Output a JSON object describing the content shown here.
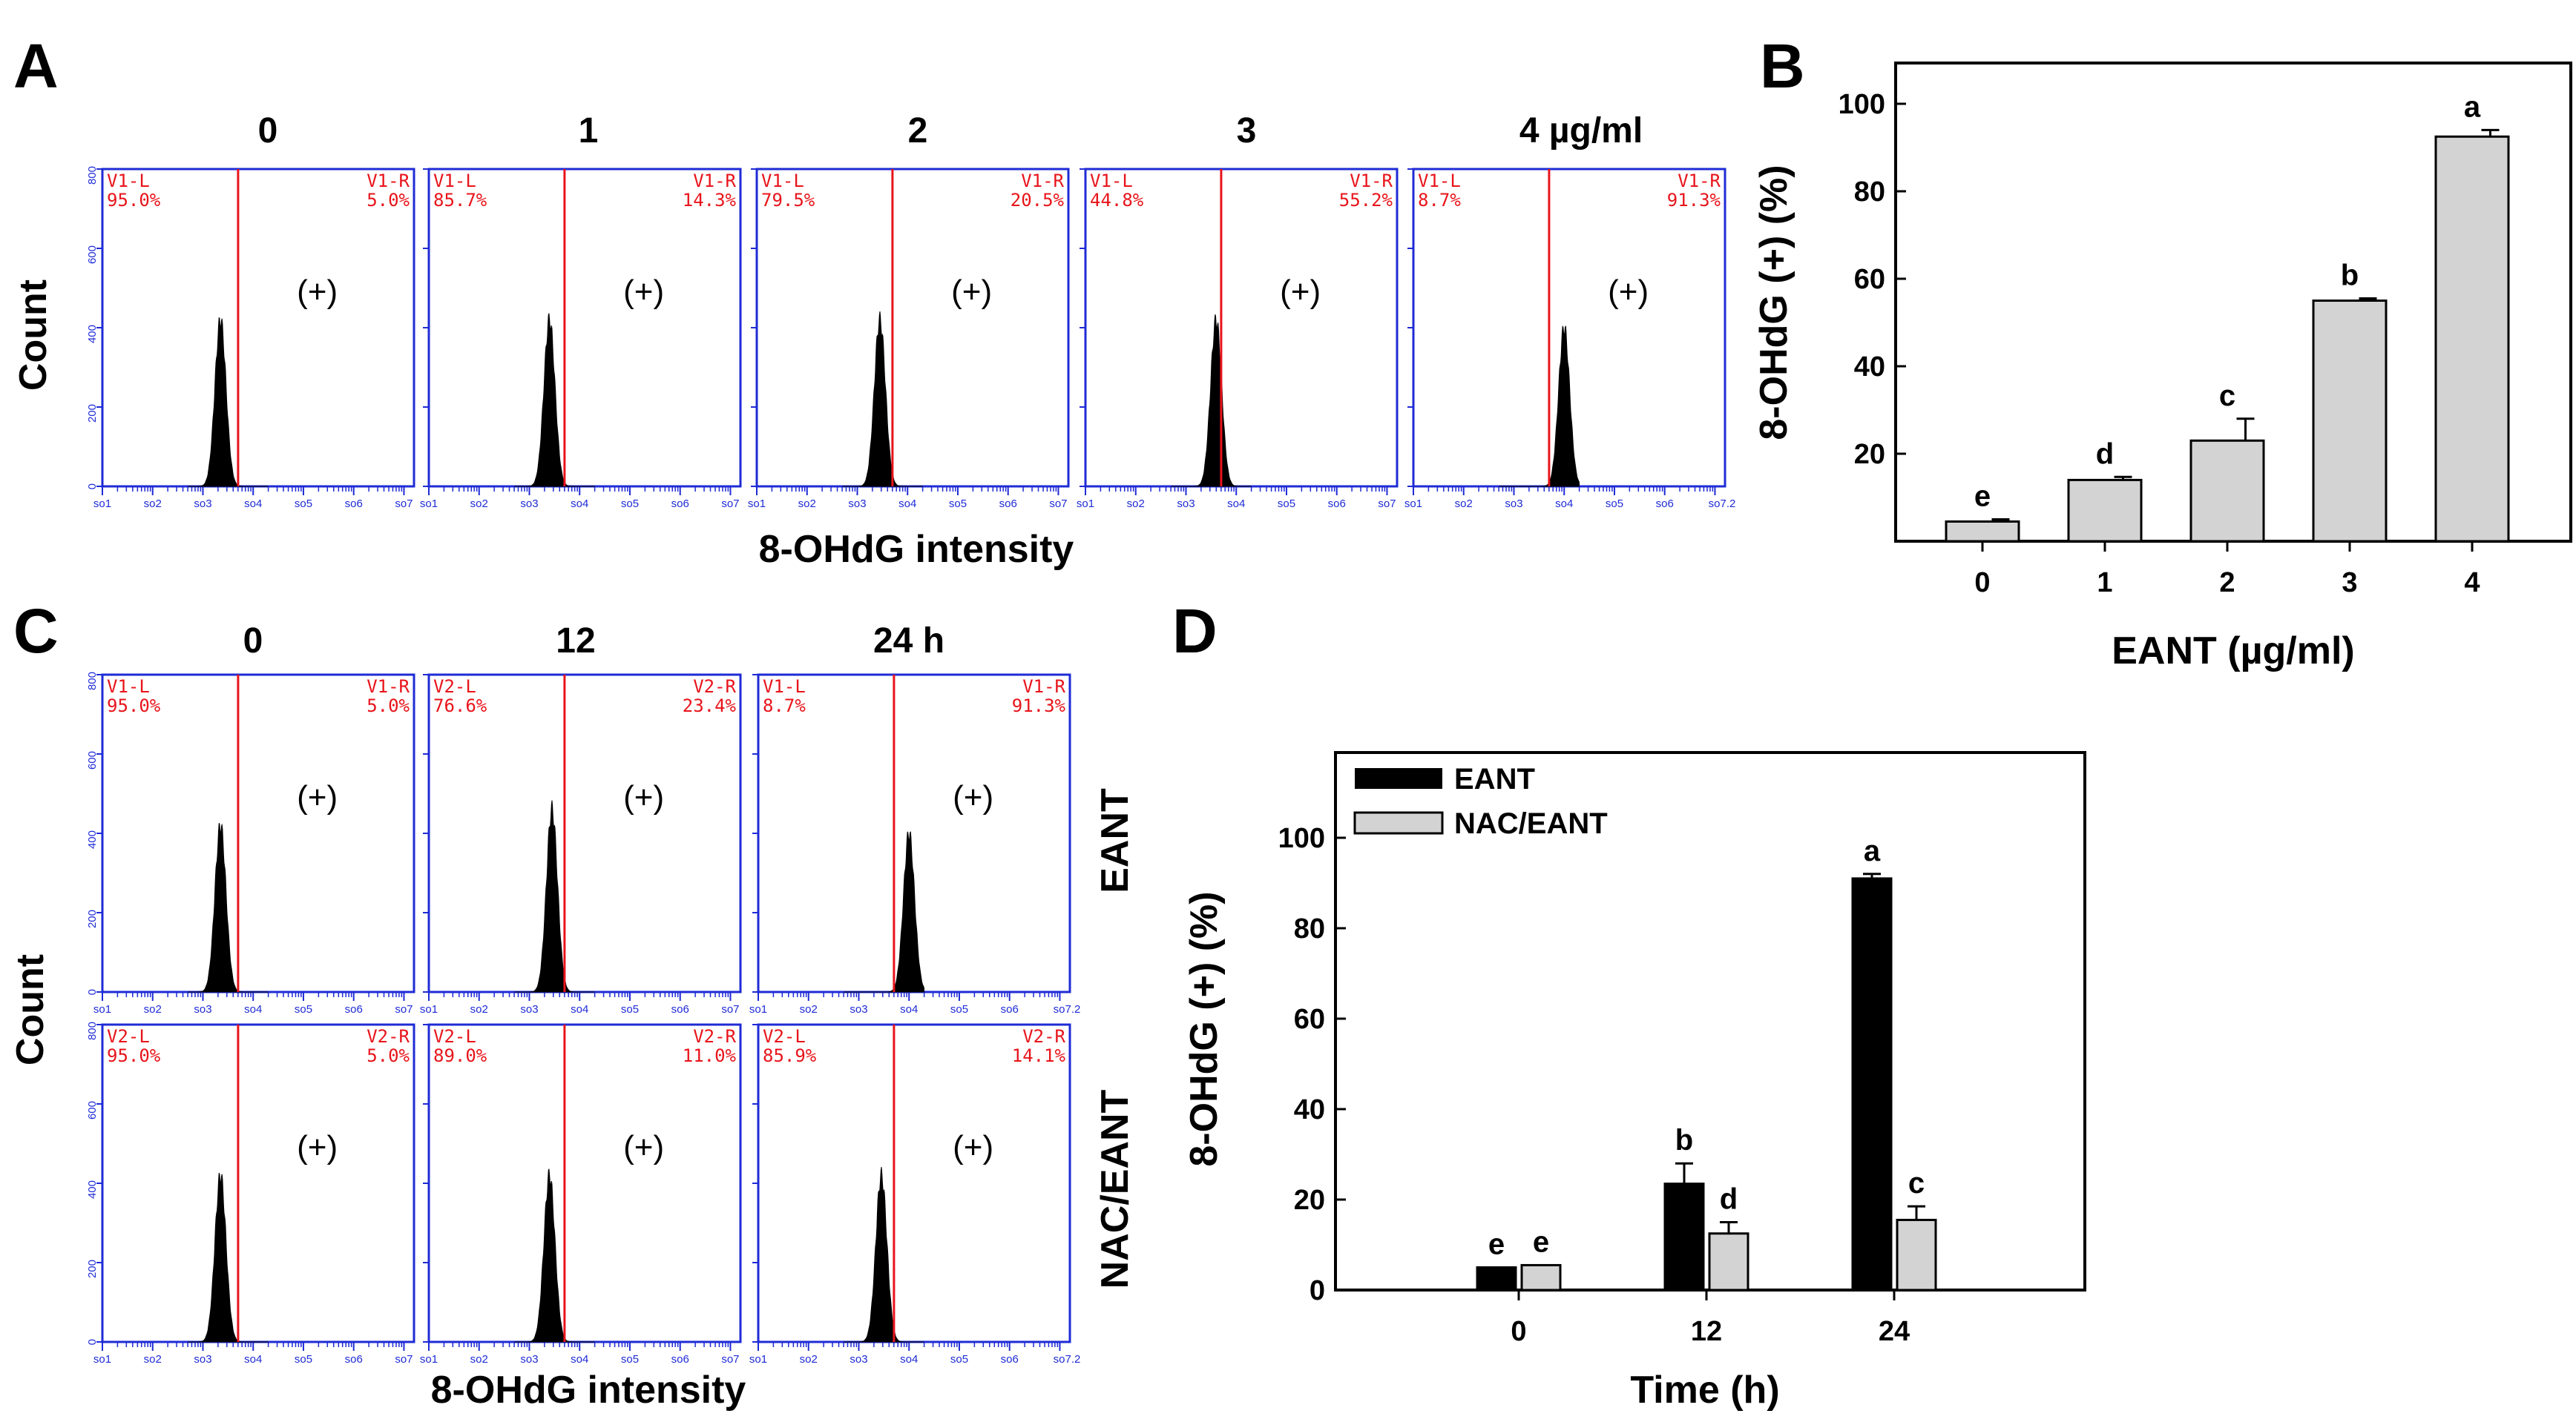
{
  "panels": {
    "A": "A",
    "B": "B",
    "C": "C",
    "D": "D"
  },
  "shared_labels": {
    "count": "Count",
    "intensity_a": "8-OHdG intensity",
    "intensity_c": "8-OHdG intensity",
    "row_eant": "EANT",
    "row_nac": "NAC/EANT",
    "positive": "(+)"
  },
  "flow_axis": {
    "y_ticks": [
      "0",
      "200",
      "400",
      "600",
      "800"
    ],
    "x_ticks": [
      "10^1",
      "10^2",
      "10^3",
      "10^4",
      "10^5",
      "10^6",
      "10^7"
    ],
    "last_x_tick_label": "10^7.2"
  },
  "colors": {
    "frame": "#1f2bd6",
    "gate": "#e8141b",
    "histogram": "#000000",
    "bar_eant": "#000000",
    "bar_nac": "#d3d3d3",
    "bar_b": "#d3d3d3"
  },
  "panel_a": {
    "headers": [
      "0",
      "1",
      "2",
      "3",
      "4 µg/ml"
    ],
    "plots": [
      {
        "gate_l": "V1-L",
        "pct_l": "95.0%",
        "gate_r": "V1-R",
        "pct_r": "5.0%",
        "peak_log": 3.35,
        "peak_count": 420
      },
      {
        "gate_l": "V1-L",
        "pct_l": "85.7%",
        "gate_r": "V1-R",
        "pct_r": "14.3%",
        "peak_log": 3.4,
        "peak_count": 420
      },
      {
        "gate_l": "V1-L",
        "pct_l": "79.5%",
        "gate_r": "V1-R",
        "pct_r": "20.5%",
        "peak_log": 3.45,
        "peak_count": 420
      },
      {
        "gate_l": "V1-L",
        "pct_l": "44.8%",
        "gate_r": "V1-R",
        "pct_r": "55.2%",
        "peak_log": 3.6,
        "peak_count": 420
      },
      {
        "gate_l": "V1-L",
        "pct_l": "8.7%",
        "gate_r": "V1-R",
        "pct_r": "91.3%",
        "peak_log": 4.0,
        "peak_count": 400
      }
    ]
  },
  "panel_c": {
    "headers": [
      "0",
      "12",
      "24 h"
    ],
    "rows": [
      {
        "label": "EANT",
        "plots": [
          {
            "gate_l": "V1-L",
            "pct_l": "95.0%",
            "gate_r": "V1-R",
            "pct_r": "5.0%",
            "peak_log": 3.35,
            "peak_count": 420
          },
          {
            "gate_l": "V2-L",
            "pct_l": "76.6%",
            "gate_r": "V2-R",
            "pct_r": "23.4%",
            "peak_log": 3.45,
            "peak_count": 460
          },
          {
            "gate_l": "V1-L",
            "pct_l": "8.7%",
            "gate_r": "V1-R",
            "pct_r": "91.3%",
            "peak_log": 4.0,
            "peak_count": 400
          }
        ]
      },
      {
        "label": "NAC/EANT",
        "plots": [
          {
            "gate_l": "V2-L",
            "pct_l": "95.0%",
            "gate_r": "V2-R",
            "pct_r": "5.0%",
            "peak_log": 3.35,
            "peak_count": 420
          },
          {
            "gate_l": "V2-L",
            "pct_l": "89.0%",
            "gate_r": "V2-R",
            "pct_r": "11.0%",
            "peak_log": 3.4,
            "peak_count": 420
          },
          {
            "gate_l": "V2-L",
            "pct_l": "85.9%",
            "gate_r": "V2-R",
            "pct_r": "14.1%",
            "peak_log": 3.45,
            "peak_count": 420
          }
        ]
      }
    ]
  },
  "chart_data": [
    {
      "type": "bar",
      "panel": "B",
      "categories": [
        "0",
        "1",
        "2",
        "3",
        "4"
      ],
      "values": [
        4.5,
        14,
        23,
        55,
        92.5
      ],
      "errors": [
        0.5,
        0.7,
        5,
        0.5,
        1.5
      ],
      "significance": [
        "e",
        "d",
        "c",
        "b",
        "a"
      ],
      "xlabel": "EANT (µg/ml)",
      "ylabel": "8-OHdG (+) (%)",
      "ylim": [
        0,
        100
      ],
      "yticks": [
        "20",
        "40",
        "60",
        "80",
        "100"
      ],
      "grid": false
    },
    {
      "type": "bar",
      "panel": "D",
      "categories": [
        "0",
        "12",
        "24"
      ],
      "series": [
        {
          "name": "EANT",
          "values": [
            5,
            23.5,
            91
          ],
          "errors": [
            0,
            4.5,
            1
          ],
          "significance": [
            "e",
            "b",
            "a"
          ]
        },
        {
          "name": "NAC/EANT",
          "values": [
            5.5,
            12.5,
            15.5
          ],
          "errors": [
            0,
            2.5,
            3
          ],
          "significance": [
            "e",
            "d",
            "c"
          ]
        }
      ],
      "xlabel": "Time (h)",
      "ylabel": "8-OHdG (+) (%)",
      "ylim": [
        0,
        100
      ],
      "yticks": [
        "0",
        "20",
        "40",
        "60",
        "80",
        "100"
      ],
      "legend_position": "top-left",
      "grid": false
    }
  ]
}
